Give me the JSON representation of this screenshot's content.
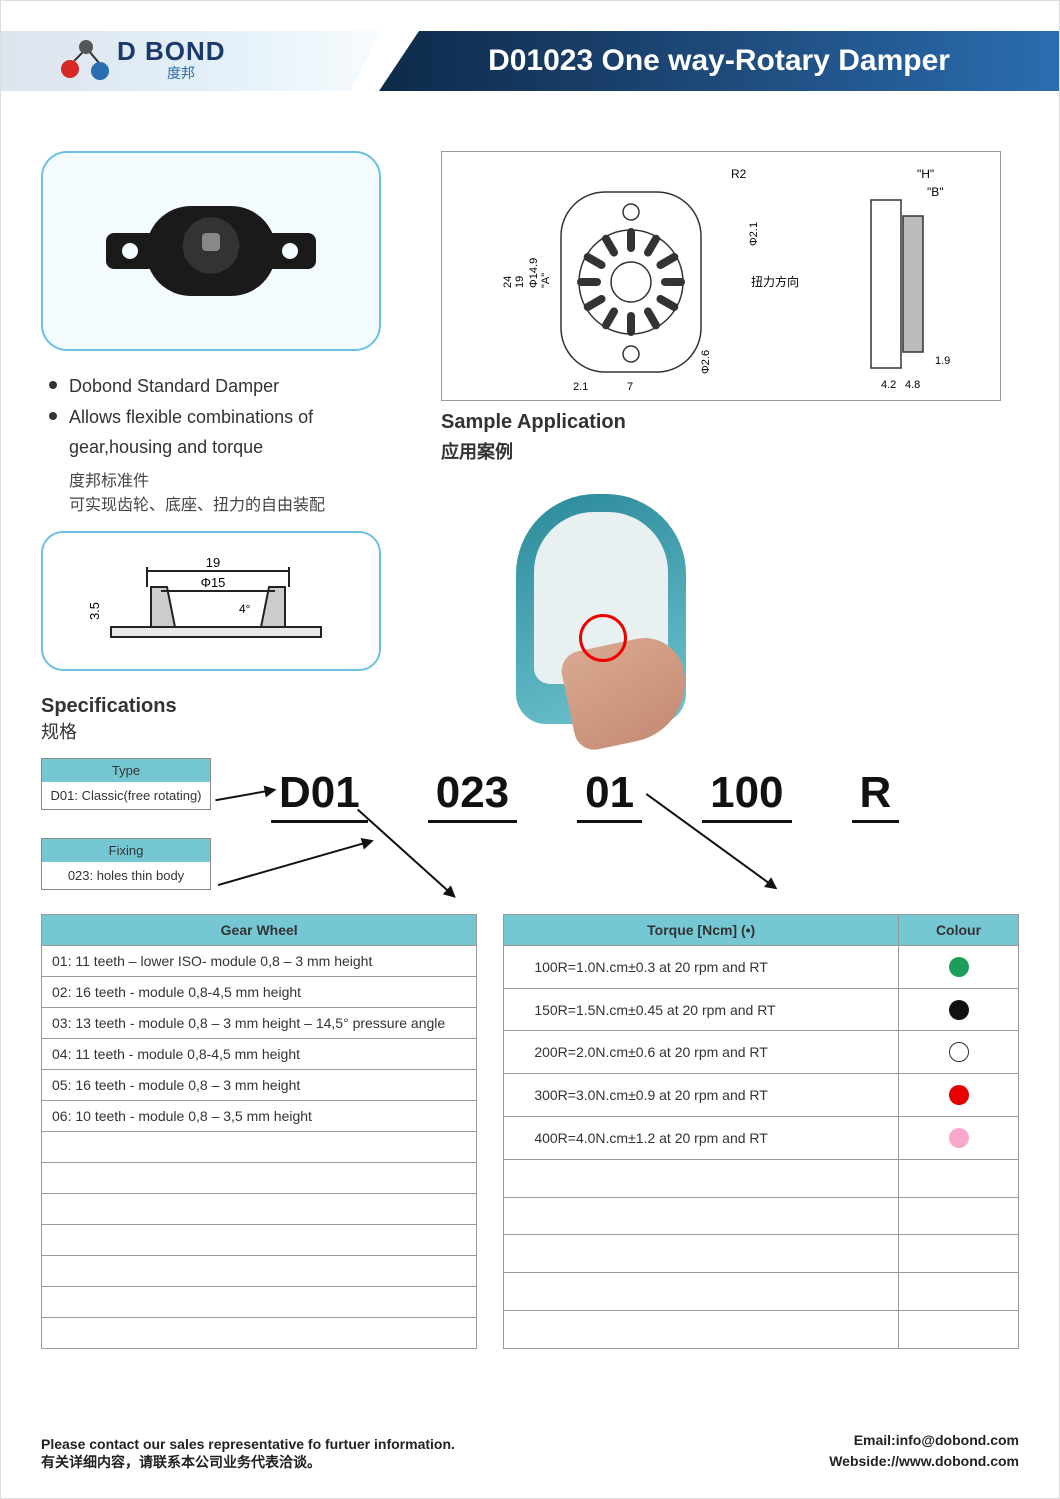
{
  "header": {
    "logo_text": "D   BOND",
    "logo_cn": "度邦",
    "title": "D01023 One way-Rotary Damper"
  },
  "bullets": [
    "Dobond Standard Damper",
    "Allows flexible combinations of gear,housing and torque"
  ],
  "bullets_cn": [
    "度邦标准件",
    "可实现齿轮、底座、扭力的自由装配"
  ],
  "tech_drawing": {
    "labels": [
      "R2",
      "\"H\"",
      "\"B\"",
      "Φ2.1",
      "Φ14.9",
      "\"A\"",
      "扭力方向",
      "24",
      "19",
      "2.1",
      "7",
      "Φ2.6",
      "4.2",
      "1.9",
      "4.8"
    ]
  },
  "cross_section": {
    "labels": [
      "19",
      "Φ15",
      "3.5",
      "4°"
    ]
  },
  "sample": {
    "title_en": "Sample Application",
    "title_cn": "应用案例"
  },
  "spec": {
    "title_en": "Specifications",
    "title_cn": "规格"
  },
  "type_table": {
    "header": "Type",
    "value": "D01: Classic(free rotating)"
  },
  "fixing_table": {
    "header": "Fixing",
    "value": "023: holes thin body"
  },
  "partnum": [
    "D01",
    "023",
    "01",
    "100",
    "R"
  ],
  "gear_table": {
    "header": "Gear Wheel",
    "rows": [
      "01: 11 teeth – lower ISO- module 0,8 – 3 mm height",
      "02: 16 teeth - module 0,8-4,5 mm height",
      "03: 13 teeth - module 0,8 – 3 mm height – 14,5° pressure angle",
      "04: 11 teeth - module 0,8-4,5 mm height",
      "05: 16 teeth - module 0,8 – 3 mm height",
      "06: 10 teeth - module 0,8 – 3,5 mm height"
    ],
    "empty_rows": 7
  },
  "torque_table": {
    "header_torque": "Torque [Ncm]   (•)",
    "header_colour": "Colour",
    "rows": [
      {
        "text": "100R=1.0N.cm±0.3 at 20 rpm and RT",
        "color": "#1a9e5a",
        "ring": false
      },
      {
        "text": "150R=1.5N.cm±0.45 at 20 rpm and RT",
        "color": "#111111",
        "ring": false
      },
      {
        "text": "200R=2.0N.cm±0.6 at 20 rpm and RT",
        "color": "#ffffff",
        "ring": true
      },
      {
        "text": "300R=3.0N.cm±0.9 at 20 rpm and RT",
        "color": "#e60000",
        "ring": false
      },
      {
        "text": "400R=4.0N.cm±1.2 at 20 rpm and RT",
        "color": "#f7a8cc",
        "ring": false
      }
    ],
    "empty_rows": 5
  },
  "footer": {
    "left_en": "Please contact our sales representative fo furtuer information.",
    "left_cn": "有关详细内容，请联系本公司业务代表洽谈。",
    "email_label": "Email:",
    "email": "info@dobond.com",
    "web_label": "Webside:",
    "web": "//www.dobond.com"
  },
  "colors": {
    "header_bg": "#1e4a7a",
    "accent": "#76c7d4",
    "box_border": "#6cc0e0"
  }
}
